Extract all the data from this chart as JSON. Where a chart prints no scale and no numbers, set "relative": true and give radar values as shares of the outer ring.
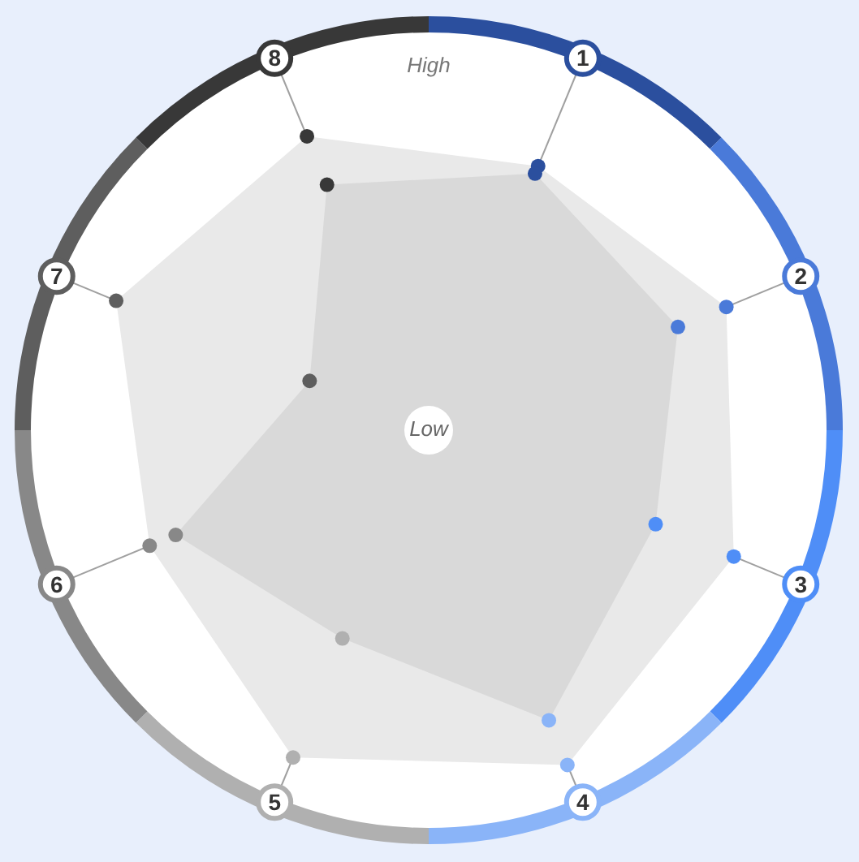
{
  "chart_data": {
    "type": "radar",
    "relative": true,
    "categories": [
      "1",
      "2",
      "3",
      "4",
      "5",
      "6",
      "7",
      "8"
    ],
    "colors": [
      "#2b4f9e",
      "#4a7ad9",
      "#4f8ef7",
      "#8ab4f8",
      "#b0b0b0",
      "#888888",
      "#5e5e5e",
      "#383838"
    ],
    "series": [
      {
        "color": "#e9e9e9",
        "values": [
          0.71,
          0.8,
          0.82,
          0.9,
          0.88,
          0.75,
          0.84,
          0.79
        ]
      },
      {
        "color": "#d9d9d9",
        "values": [
          0.69,
          0.67,
          0.61,
          0.78,
          0.56,
          0.68,
          0.32,
          0.66
        ]
      }
    ],
    "annotations": [
      "High",
      "Low"
    ]
  }
}
